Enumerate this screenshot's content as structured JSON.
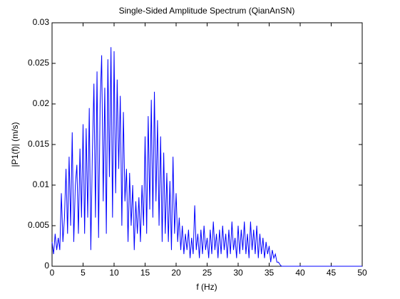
{
  "chart_data": {
    "type": "line",
    "title": "Single-Sided Amplitude Spectrum (QianAnSN)",
    "x_label": "f (Hz)",
    "y_label": "|P1(f)| (m/s)",
    "x": [
      0,
      0.25,
      0.5,
      0.75,
      1,
      1.25,
      1.5,
      1.75,
      2,
      2.25,
      2.5,
      2.75,
      3,
      3.25,
      3.5,
      3.75,
      4,
      4.25,
      4.5,
      4.75,
      5,
      5.25,
      5.5,
      5.75,
      6,
      6.25,
      6.5,
      6.75,
      7,
      7.25,
      7.5,
      7.75,
      8,
      8.25,
      8.5,
      8.75,
      9,
      9.25,
      9.5,
      9.75,
      10,
      10.25,
      10.5,
      10.75,
      11,
      11.25,
      11.5,
      11.75,
      12,
      12.25,
      12.5,
      12.75,
      13,
      13.25,
      13.5,
      13.75,
      14,
      14.25,
      14.5,
      14.75,
      15,
      15.25,
      15.5,
      15.75,
      16,
      16.25,
      16.5,
      16.75,
      17,
      17.25,
      17.5,
      17.75,
      18,
      18.25,
      18.5,
      18.75,
      19,
      19.25,
      19.5,
      19.75,
      20,
      20.25,
      20.5,
      20.75,
      21,
      21.25,
      21.5,
      21.75,
      22,
      22.25,
      22.5,
      22.75,
      23,
      23.25,
      23.5,
      23.75,
      24,
      24.25,
      24.5,
      24.75,
      25,
      25.25,
      25.5,
      25.75,
      26,
      26.25,
      26.5,
      26.75,
      27,
      27.25,
      27.5,
      27.75,
      28,
      28.25,
      28.5,
      28.75,
      29,
      29.25,
      29.5,
      29.75,
      30,
      30.25,
      30.5,
      30.75,
      31,
      31.25,
      31.5,
      31.75,
      32,
      32.25,
      32.5,
      32.75,
      33,
      33.25,
      33.5,
      33.75,
      34,
      34.25,
      34.5,
      34.75,
      35,
      35.25,
      35.5,
      35.75,
      36,
      36.25,
      36.5,
      36.75,
      37,
      50
    ],
    "series": [
      {
        "color": "#0000ff",
        "values": [
          0.003,
          0.0015,
          0.004,
          0.002,
          0.0035,
          0.002,
          0.009,
          0.003,
          0.006,
          0.012,
          0.004,
          0.0135,
          0.005,
          0.0165,
          0.003,
          0.01,
          0.0125,
          0.004,
          0.0145,
          0.006,
          0.0175,
          0.004,
          0.017,
          0.006,
          0.0195,
          0.002,
          0.014,
          0.0225,
          0.006,
          0.024,
          0.0035,
          0.02,
          0.026,
          0.008,
          0.022,
          0.004,
          0.0255,
          0.011,
          0.027,
          0.006,
          0.0265,
          0.009,
          0.023,
          0.012,
          0.021,
          0.005,
          0.019,
          0.008,
          0.012,
          0.003,
          0.0115,
          0.005,
          0.01,
          0.002,
          0.008,
          0.004,
          0.0085,
          0.003,
          0.01,
          0.005,
          0.016,
          0.004,
          0.0185,
          0.007,
          0.0205,
          0.006,
          0.0215,
          0.008,
          0.018,
          0.005,
          0.016,
          0.003,
          0.014,
          0.004,
          0.0115,
          0.003,
          0.0105,
          0.002,
          0.0135,
          0.004,
          0.009,
          0.003,
          0.006,
          0.002,
          0.005,
          0.0015,
          0.004,
          0.002,
          0.0045,
          0.001,
          0.0035,
          0.0015,
          0.0075,
          0.002,
          0.004,
          0.001,
          0.0045,
          0.0015,
          0.005,
          0.002,
          0.0035,
          0.001,
          0.0045,
          0.0015,
          0.0055,
          0.002,
          0.004,
          0.001,
          0.0045,
          0.0015,
          0.005,
          0.002,
          0.004,
          0.001,
          0.0045,
          0.0015,
          0.0055,
          0.002,
          0.0035,
          0.001,
          0.005,
          0.0015,
          0.0045,
          0.002,
          0.0055,
          0.0015,
          0.004,
          0.001,
          0.0055,
          0.002,
          0.0045,
          0.0015,
          0.005,
          0.001,
          0.004,
          0.0015,
          0.0035,
          0.001,
          0.003,
          0.0015,
          0.0025,
          0.0005,
          0.002,
          0.001,
          0.0015,
          0.0005,
          0.0005,
          0.0002,
          0,
          0
        ]
      }
    ],
    "xlim": [
      0,
      50
    ],
    "xticks": [
      0,
      5,
      10,
      15,
      20,
      25,
      30,
      35,
      40,
      45,
      50
    ],
    "ylim": [
      0,
      0.03
    ],
    "yticks": [
      0,
      0.005,
      0.01,
      0.015,
      0.02,
      0.025,
      0.03
    ],
    "grid": false
  }
}
